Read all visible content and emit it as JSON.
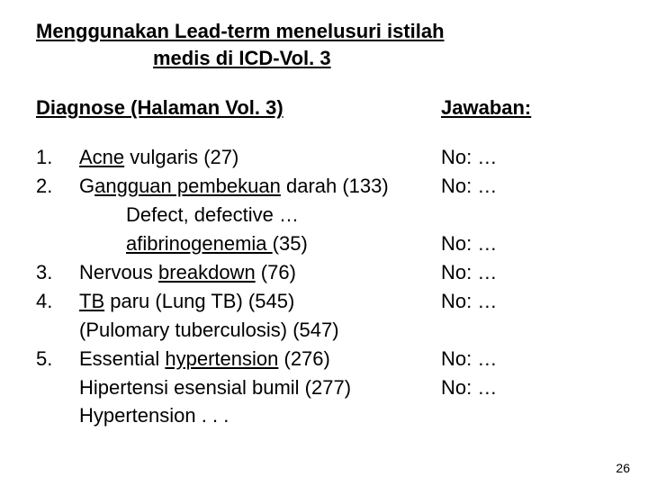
{
  "title_line1": "Menggunakan Lead-term menelusuri istilah",
  "title_line2": "medis di ICD-Vol. 3",
  "left_header": "Diagnose  (Halaman Vol. 3)",
  "right_header": "Jawaban:",
  "items": {
    "r1_num": "1.",
    "r1_a": "Acne",
    "r1_b": " vulgaris  (27)",
    "r2_num": "2.",
    "r2_a": "G",
    "r2_b": "angguan pembekuan",
    "r2_c": " darah (133)",
    "r3": "Defect, defective …",
    "r4_a": "afibrinogenemia ",
    "r4_b": "(35)",
    "r5_num": "3.",
    "r5_a": "Nervous ",
    "r5_b": "breakdown",
    "r5_c": " (76)",
    "r6_num": "4.",
    "r6_a": "TB",
    "r6_b": " paru (Lung TB)   (545)",
    "r7": "(Pulomary tuberculosis) (547)",
    "r8_num": " 5.",
    "r8_a": "Essential ",
    "r8_b": "hypertension",
    "r8_c": " (276)",
    "r9": "Hipertensi esensial bumil (277)",
    "r10": "Hypertension . . ."
  },
  "answers": {
    "a1": "No: …",
    "a2": "No: …",
    "a3": "No: …",
    "a4": "No: …",
    "a5": "No: …",
    "a6": "No: …",
    "a7": "No: …",
    "blank": "–"
  },
  "page_number": "26"
}
